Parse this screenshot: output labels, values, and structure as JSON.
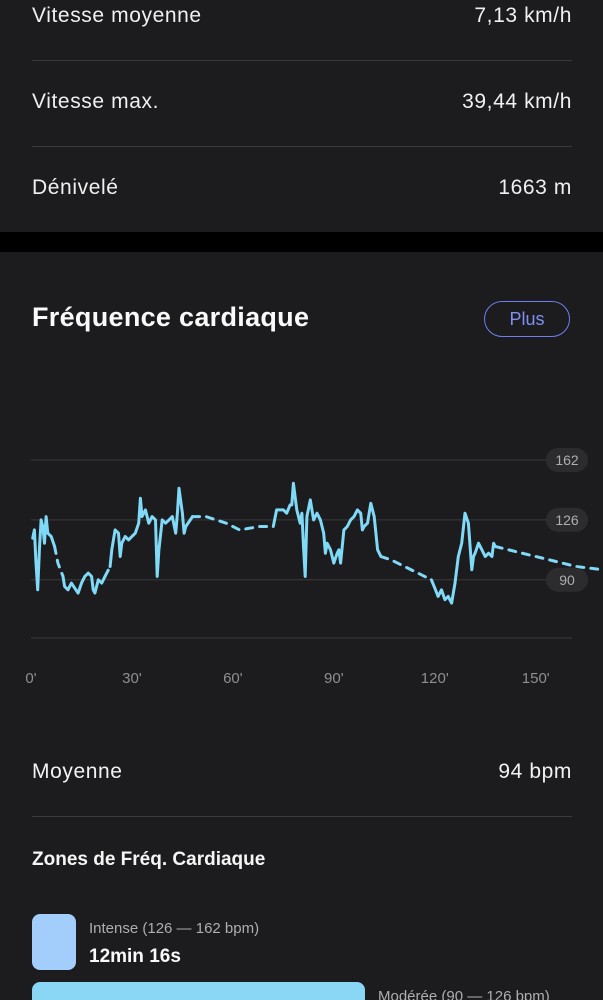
{
  "stats": [
    {
      "label": "Vitesse moyenne",
      "value": "7,13 km/h"
    },
    {
      "label": "Vitesse max.",
      "value": "39,44 km/h"
    },
    {
      "label": "Dénivelé",
      "value": "1663 m"
    }
  ],
  "heart_rate": {
    "title": "Fréquence cardiaque",
    "more_button": "Plus",
    "average_label": "Moyenne",
    "average_value": "94 bpm",
    "zones_title": "Zones de Fréq. Cardiaque",
    "zones": [
      {
        "label": "Intense (126 — 162 bpm)",
        "time": "12min 16s",
        "color": "#a3cdfa"
      },
      {
        "label": "Modérée (90 — 126 bpm)",
        "color": "#8ad7f5"
      }
    ]
  },
  "chart_data": {
    "type": "line",
    "title": "",
    "xlabel": "",
    "ylabel": "",
    "x_tick_labels": [
      "0'",
      "30'",
      "60'",
      "90'",
      "120'",
      "150'"
    ],
    "x_ticks": [
      0,
      30,
      60,
      90,
      120,
      150
    ],
    "y_tick_labels": [
      "162",
      "126",
      "90"
    ],
    "y_ticks": [
      162,
      126,
      90
    ],
    "xlim": [
      0,
      170
    ],
    "ylim": [
      55,
      162
    ],
    "line_color": "#7fd9f7",
    "series": [
      {
        "style": "solid",
        "points": [
          [
            0.5,
            115
          ],
          [
            1,
            120
          ],
          [
            1.5,
            100
          ],
          [
            2,
            84
          ],
          [
            2.5,
            108
          ],
          [
            3,
            126
          ],
          [
            3.5,
            122
          ],
          [
            4,
            112
          ],
          [
            4.5,
            128
          ],
          [
            5,
            118
          ],
          [
            6,
            116
          ],
          [
            7,
            110
          ]
        ]
      },
      {
        "style": "dashed",
        "points": [
          [
            7,
            110
          ],
          [
            8,
            100
          ],
          [
            9.5,
            92
          ]
        ]
      },
      {
        "style": "solid",
        "points": [
          [
            9.5,
            92
          ],
          [
            10,
            86
          ],
          [
            11,
            84
          ],
          [
            12,
            88
          ],
          [
            13,
            85
          ],
          [
            14,
            82
          ],
          [
            15,
            88
          ],
          [
            16,
            92
          ],
          [
            17,
            94
          ],
          [
            18,
            92
          ],
          [
            18.5,
            84
          ],
          [
            19,
            82
          ],
          [
            20,
            90
          ],
          [
            21,
            88
          ],
          [
            22,
            92
          ]
        ]
      },
      {
        "style": "dashed",
        "points": [
          [
            22,
            92
          ],
          [
            23,
            96
          ],
          [
            23.5,
            98
          ]
        ]
      },
      {
        "style": "solid",
        "points": [
          [
            23.5,
            98
          ],
          [
            24,
            108
          ],
          [
            25,
            120
          ],
          [
            26,
            118
          ],
          [
            26.5,
            104
          ],
          [
            27,
            112
          ],
          [
            28,
            116
          ],
          [
            29,
            114
          ],
          [
            30,
            116
          ],
          [
            31,
            118
          ],
          [
            32,
            124
          ],
          [
            32.5,
            139
          ],
          [
            33,
            128
          ],
          [
            34,
            132
          ],
          [
            35,
            124
          ],
          [
            36,
            128
          ],
          [
            37,
            126
          ],
          [
            37.5,
            92
          ],
          [
            38,
            108
          ],
          [
            39,
            126
          ],
          [
            40,
            124
          ],
          [
            41,
            126
          ],
          [
            42,
            128
          ],
          [
            43,
            118
          ],
          [
            43.5,
            130
          ],
          [
            44,
            145
          ],
          [
            45,
            130
          ],
          [
            45.5,
            118
          ],
          [
            46,
            122
          ],
          [
            47,
            125
          ],
          [
            48,
            128
          ]
        ]
      },
      {
        "style": "dashed",
        "points": [
          [
            48,
            128
          ],
          [
            52,
            128
          ],
          [
            58,
            124
          ],
          [
            62,
            120
          ],
          [
            68,
            122
          ],
          [
            72,
            122
          ]
        ]
      },
      {
        "style": "solid",
        "points": [
          [
            72,
            122
          ],
          [
            73,
            132
          ],
          [
            74,
            132
          ],
          [
            75,
            132
          ],
          [
            76,
            130
          ],
          [
            77,
            135
          ],
          [
            77.5,
            135
          ],
          [
            78,
            148
          ],
          [
            79,
            132
          ],
          [
            80,
            124
          ],
          [
            80.5,
            130
          ],
          [
            81,
            110
          ],
          [
            81.5,
            92
          ],
          [
            82,
            128
          ],
          [
            83,
            138
          ],
          [
            84,
            126
          ],
          [
            85,
            130
          ],
          [
            86,
            126
          ],
          [
            87,
            118
          ],
          [
            87.5,
            106
          ],
          [
            88,
            112
          ],
          [
            89,
            108
          ],
          [
            90,
            100
          ],
          [
            91,
            106
          ],
          [
            91.5,
            108
          ],
          [
            92,
            100
          ],
          [
            93,
            120
          ],
          [
            94,
            122
          ],
          [
            95,
            126
          ],
          [
            96,
            128
          ],
          [
            97,
            132
          ],
          [
            98,
            130
          ],
          [
            98.5,
            120
          ],
          [
            99,
            122
          ],
          [
            100,
            124
          ],
          [
            101,
            136
          ],
          [
            102,
            128
          ],
          [
            103,
            108
          ],
          [
            104,
            104
          ]
        ]
      },
      {
        "style": "dashed",
        "points": [
          [
            104,
            104
          ],
          [
            107,
            102
          ],
          [
            111,
            98
          ],
          [
            115,
            94
          ],
          [
            119,
            90
          ]
        ]
      },
      {
        "style": "solid",
        "points": [
          [
            119,
            90
          ],
          [
            120,
            85
          ],
          [
            121,
            80
          ],
          [
            122,
            84
          ],
          [
            123,
            78
          ],
          [
            124,
            80
          ],
          [
            125,
            76
          ],
          [
            126,
            88
          ],
          [
            127,
            104
          ],
          [
            128,
            112
          ],
          [
            129,
            130
          ],
          [
            130,
            124
          ],
          [
            131,
            96
          ],
          [
            131.5,
            104
          ],
          [
            132,
            106
          ],
          [
            133,
            112
          ],
          [
            134,
            108
          ],
          [
            135,
            104
          ],
          [
            136,
            106
          ],
          [
            137,
            104
          ],
          [
            137.5,
            112
          ],
          [
            138,
            110
          ]
        ]
      },
      {
        "style": "dashed",
        "points": [
          [
            138,
            110
          ],
          [
            146,
            106
          ],
          [
            154,
            102
          ],
          [
            162,
            98
          ],
          [
            170,
            96
          ]
        ]
      }
    ]
  }
}
